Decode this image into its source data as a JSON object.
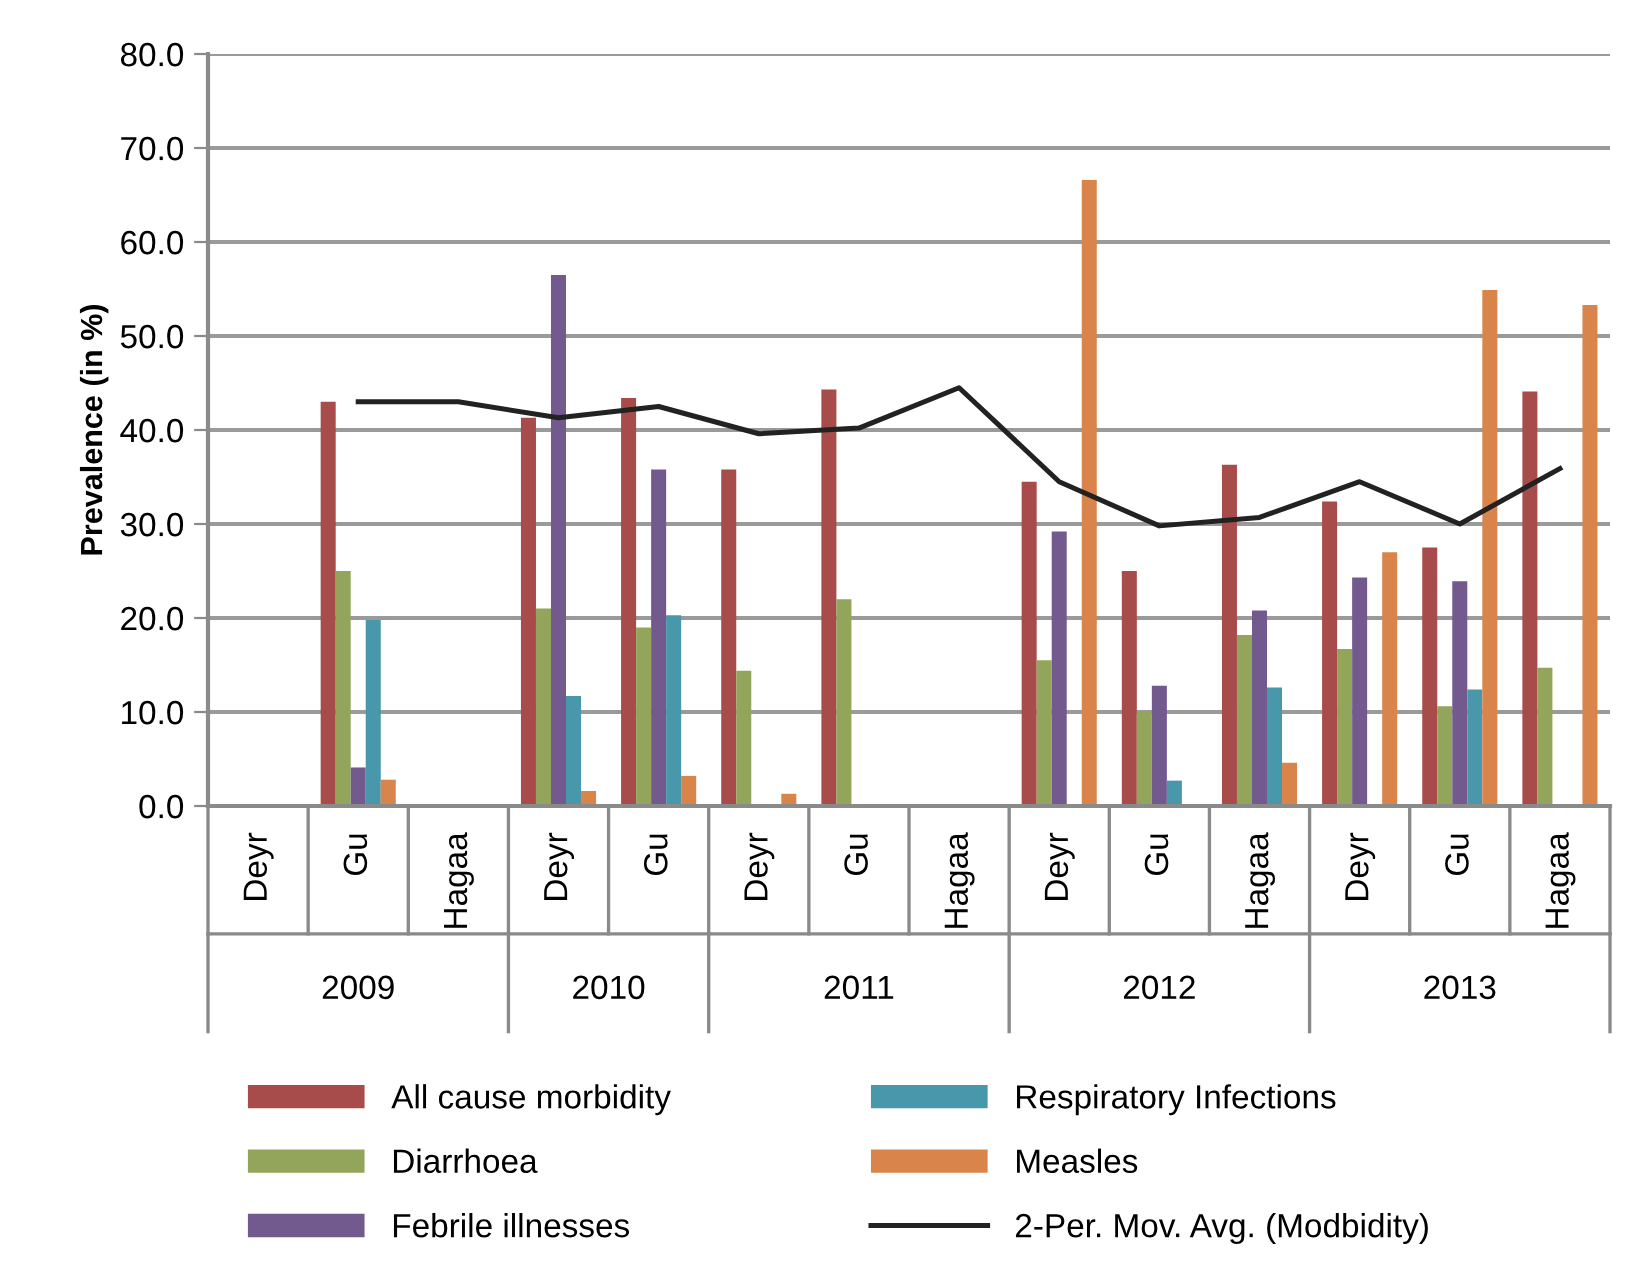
{
  "chart_data": {
    "type": "bar",
    "ylabel": "Prevalence (in %)",
    "categories": [
      "Deyr",
      "Gu",
      "Hagaa",
      "Deyr",
      "Gu",
      "Deyr",
      "Gu",
      "Hagaa",
      "Deyr",
      "Gu",
      "Hagaa",
      "Deyr",
      "Gu",
      "Hagaa"
    ],
    "annotations": [
      "2009",
      "2010",
      "2011",
      "2012",
      "2013"
    ],
    "series": [
      {
        "name": "All cause morbidity",
        "color": "#a84b4b",
        "values": [
          null,
          43.0,
          null,
          41.3,
          43.4,
          35.8,
          44.3,
          null,
          34.5,
          25.0,
          36.3,
          32.4,
          27.5,
          44.1
        ]
      },
      {
        "name": "Diarrhoea",
        "color": "#93a55a",
        "values": [
          null,
          25.0,
          null,
          21.0,
          19.0,
          14.4,
          22.0,
          null,
          15.5,
          10.1,
          18.2,
          16.7,
          10.6,
          14.7
        ]
      },
      {
        "name": "Febrile illnesses",
        "color": "#725a8f",
        "values": [
          null,
          4.1,
          null,
          56.5,
          35.8,
          null,
          null,
          null,
          29.2,
          12.8,
          20.8,
          24.3,
          23.9,
          null
        ]
      },
      {
        "name": "Respiratory Infections",
        "color": "#4897ab",
        "values": [
          null,
          19.8,
          null,
          11.7,
          20.3,
          null,
          null,
          null,
          null,
          2.7,
          12.6,
          null,
          12.4,
          null
        ]
      },
      {
        "name": "Measles",
        "color": "#d9844a",
        "values": [
          null,
          2.8,
          null,
          1.6,
          3.2,
          1.3,
          null,
          null,
          66.6,
          null,
          4.6,
          27.0,
          54.9,
          53.3
        ]
      },
      {
        "name": "2-Per. Mov. Avg. (Modbidity)",
        "type": "line",
        "color": "#222222",
        "values": [
          null,
          43.0,
          43.0,
          41.3,
          42.5,
          39.6,
          40.2,
          44.5,
          34.5,
          29.8,
          30.7,
          34.5,
          30.0,
          35.9
        ]
      }
    ],
    "ylim": [
      0,
      80
    ],
    "yticks": [
      {
        "value": 0,
        "label": "0.0"
      },
      {
        "value": 10,
        "label": "10.0"
      },
      {
        "value": 20,
        "label": "20.0"
      },
      {
        "value": 30,
        "label": "30.0"
      },
      {
        "value": 40,
        "label": "40.0"
      },
      {
        "value": 50,
        "label": "50.0"
      },
      {
        "value": 60,
        "label": "60.0"
      },
      {
        "value": 70,
        "label": "70.0"
      },
      {
        "value": 80,
        "label": "80.0"
      }
    ],
    "grid": "y",
    "legend": "bottom"
  }
}
